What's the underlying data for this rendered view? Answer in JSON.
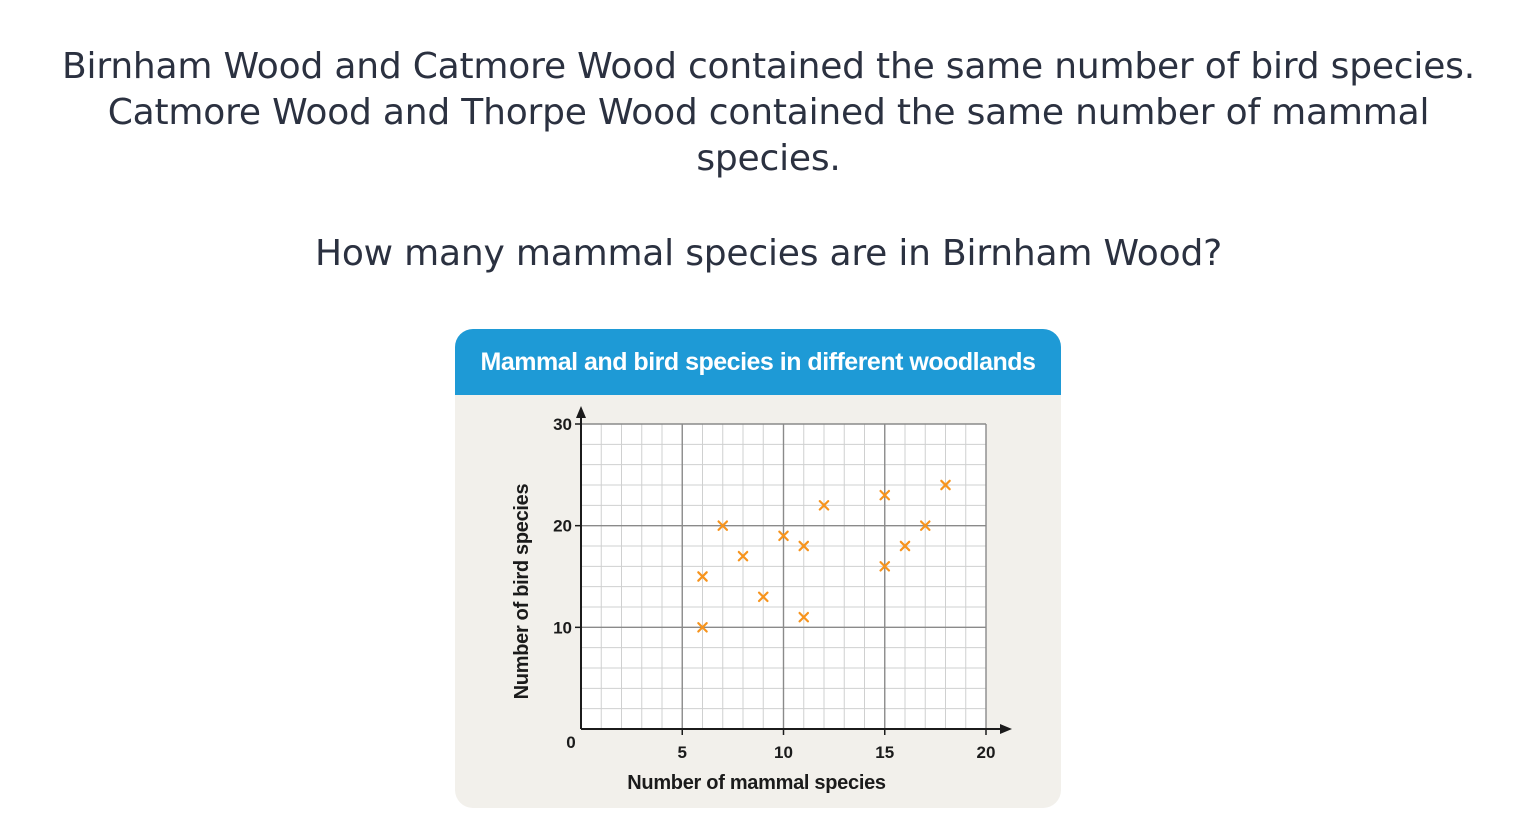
{
  "question": {
    "lines": [
      "Birnham Wood and Catmore Wood contained the same number of bird species.",
      "Catmore Wood and Thorpe Wood contained the same number of mammal",
      "species."
    ],
    "ask": "How many mammal species are in Birnham Wood?"
  },
  "colors": {
    "header": "#1e9ad6",
    "card": "#f2f0eb",
    "marker": "#f7941d",
    "gridline": "#cfd0d0",
    "majorline": "#8a8a8a",
    "axis": "#1b1b1b"
  },
  "chart_data": {
    "type": "scatter",
    "title": "Mammal and bird species in different woodlands",
    "xlabel": "Number of mammal species",
    "ylabel": "Number of bird species",
    "xlim": [
      0,
      20
    ],
    "ylim": [
      0,
      30
    ],
    "x_ticks": [
      0,
      5,
      10,
      15,
      20
    ],
    "x_tick_labels": [
      "0",
      "5",
      "10",
      "15",
      "20"
    ],
    "y_ticks": [
      10,
      20,
      30
    ],
    "y_tick_labels": [
      "10",
      "20",
      "30"
    ],
    "grid": true,
    "marker": "x",
    "points": [
      {
        "x": 6,
        "y": 10
      },
      {
        "x": 6,
        "y": 15
      },
      {
        "x": 7,
        "y": 20
      },
      {
        "x": 8,
        "y": 17
      },
      {
        "x": 9,
        "y": 13
      },
      {
        "x": 10,
        "y": 19
      },
      {
        "x": 11,
        "y": 18
      },
      {
        "x": 11,
        "y": 11
      },
      {
        "x": 12,
        "y": 22
      },
      {
        "x": 15,
        "y": 23
      },
      {
        "x": 15,
        "y": 16
      },
      {
        "x": 16,
        "y": 18
      },
      {
        "x": 17,
        "y": 20
      },
      {
        "x": 18,
        "y": 24
      }
    ]
  }
}
